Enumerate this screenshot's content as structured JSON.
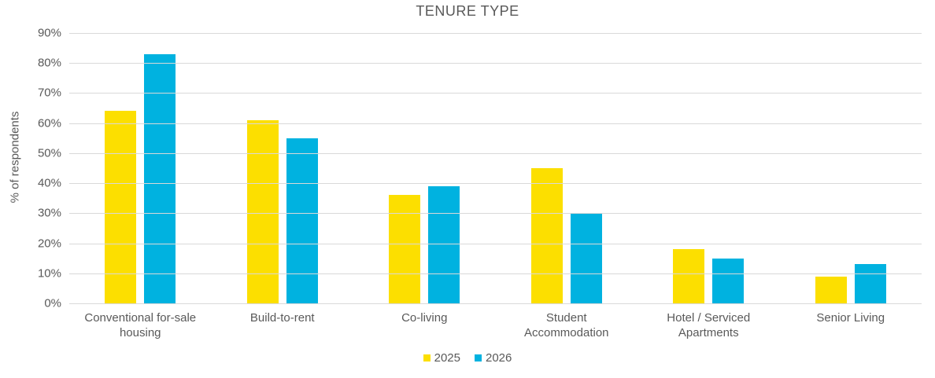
{
  "title": "TENURE TYPE",
  "colors": {
    "series_2025": "#FCDF00",
    "series_2026": "#00B2E0",
    "text": "#595959",
    "gridline": "#D9D9D9"
  },
  "chart_data": {
    "type": "bar",
    "title": "TENURE TYPE",
    "xlabel": "",
    "ylabel": "% of respondents",
    "ylim": [
      0,
      90
    ],
    "ytick_step": 10,
    "yticks": [
      "0%",
      "10%",
      "20%",
      "30%",
      "40%",
      "50%",
      "60%",
      "70%",
      "80%",
      "90%"
    ],
    "grid": true,
    "legend_position": "bottom",
    "categories": [
      "Conventional for-sale housing",
      "Build-to-rent",
      "Co-living",
      "Student Accommodation",
      "Hotel / Serviced Apartments",
      "Senior Living"
    ],
    "series": [
      {
        "name": "2025",
        "color": "#FCDF00",
        "values": [
          64,
          61,
          36,
          45,
          18,
          9
        ]
      },
      {
        "name": "2026",
        "color": "#00B2E0",
        "values": [
          83,
          55,
          39,
          30,
          15,
          13
        ]
      }
    ]
  }
}
